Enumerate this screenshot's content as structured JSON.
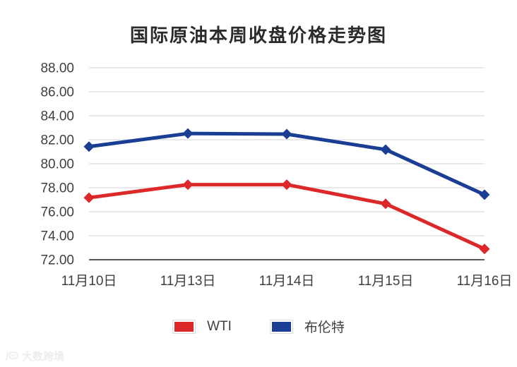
{
  "chart_data": {
    "type": "line",
    "title": "国际原油本周收盘价格走势图",
    "categories": [
      "11月10日",
      "11月13日",
      "11月14日",
      "11月15日",
      "11月16日"
    ],
    "series": [
      {
        "name": "WTI",
        "color": "#dc2828",
        "marker": "diamond",
        "values": [
          77.17,
          78.26,
          78.26,
          76.66,
          72.9
        ]
      },
      {
        "name": "布伦特",
        "color": "#1a3e94",
        "marker": "diamond",
        "values": [
          81.43,
          82.52,
          82.47,
          81.18,
          77.42
        ]
      }
    ],
    "ylim": [
      72,
      88
    ],
    "ytick_step": 2,
    "y_ticks": [
      "72.00",
      "74.00",
      "76.00",
      "78.00",
      "80.00",
      "82.00",
      "84.00",
      "86.00",
      "88.00"
    ],
    "xlabel": "",
    "ylabel": "",
    "grid": "horizontal",
    "legend_position": "bottom",
    "colors": {
      "gridline": "#d9d9d9",
      "axis_line": "#595959",
      "tick_text": "#3f3f3f",
      "title_text": "#2b2b2b"
    }
  },
  "watermark": {
    "text": "大数跨境"
  }
}
